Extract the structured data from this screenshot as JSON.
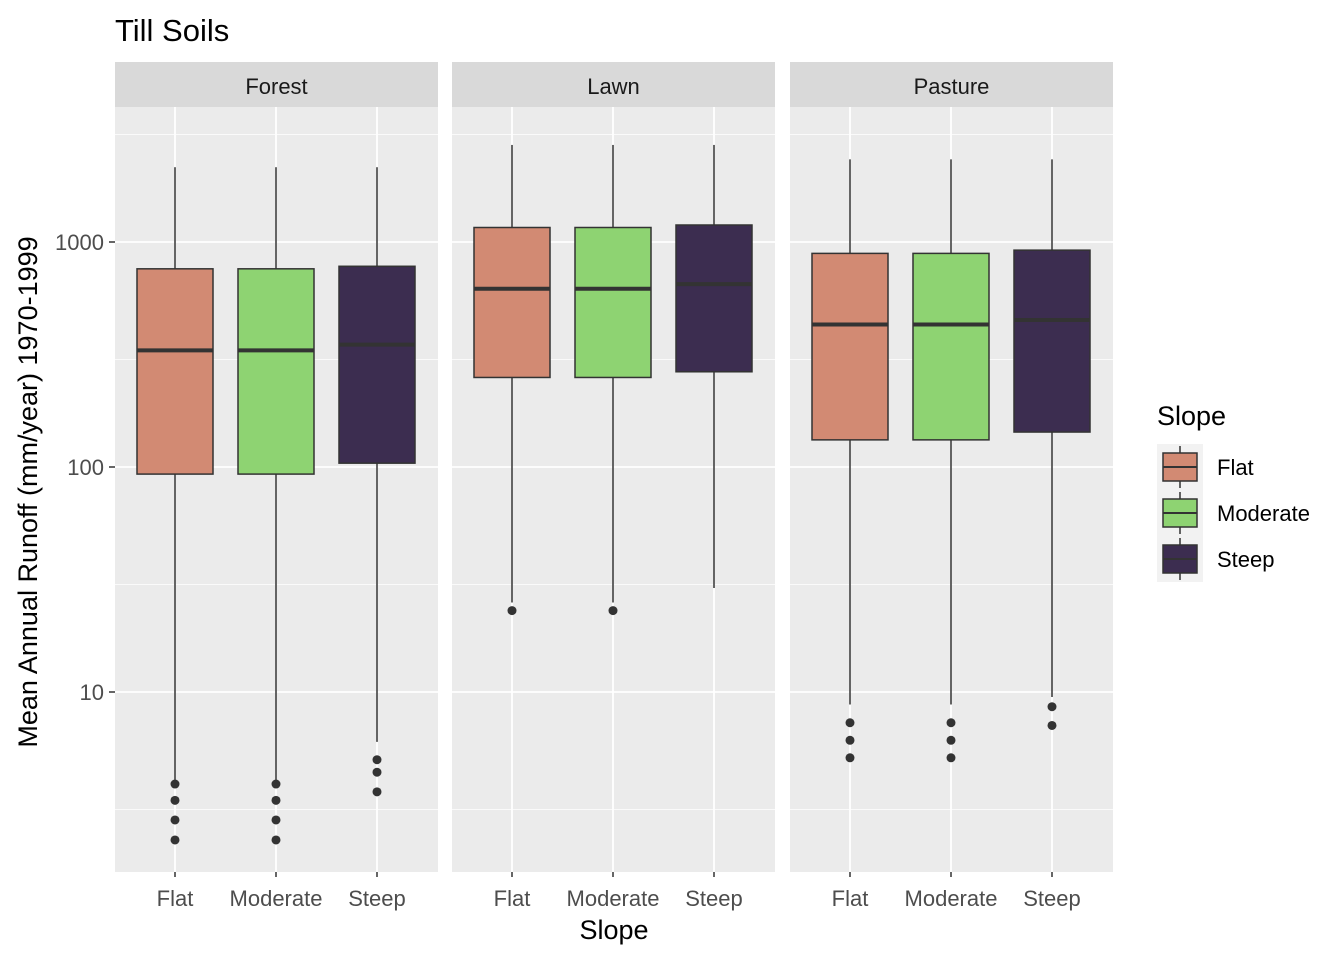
{
  "chart_data": {
    "type": "boxplot",
    "title": "Till Soils",
    "xlabel": "Slope",
    "ylabel": "Mean Annual Runoff (mm/year) 1970-1999",
    "y_scale": "log10",
    "yticks": [
      10,
      100,
      1000
    ],
    "ytick_labels": [
      "10",
      "100",
      "1000"
    ],
    "categories": [
      "Flat",
      "Moderate",
      "Steep"
    ],
    "colors": {
      "Flat": "#d28a73",
      "Moderate": "#8ed372",
      "Steep": "#3c2d50"
    },
    "legend": {
      "title": "Slope",
      "entries": [
        "Flat",
        "Moderate",
        "Steep"
      ],
      "position": "right"
    },
    "grid": true,
    "facets": [
      {
        "label": "Forest",
        "boxes": [
          {
            "category": "Flat",
            "whisker_low": 4,
            "q1": 93,
            "median": 330,
            "q3": 760,
            "whisker_high": 2150,
            "outliers": [
              3.9,
              3.3,
              2.7,
              2.2
            ]
          },
          {
            "category": "Moderate",
            "whisker_low": 4,
            "q1": 93,
            "median": 330,
            "q3": 760,
            "whisker_high": 2150,
            "outliers": [
              3.9,
              3.3,
              2.7,
              2.2
            ]
          },
          {
            "category": "Steep",
            "whisker_low": 6,
            "q1": 104,
            "median": 350,
            "q3": 780,
            "whisker_high": 2150,
            "outliers": [
              5,
              4.4,
              3.6
            ]
          }
        ]
      },
      {
        "label": "Lawn",
        "boxes": [
          {
            "category": "Flat",
            "whisker_low": 25,
            "q1": 250,
            "median": 620,
            "q3": 1160,
            "whisker_high": 2700,
            "outliers": [
              23
            ]
          },
          {
            "category": "Moderate",
            "whisker_low": 25,
            "q1": 250,
            "median": 620,
            "q3": 1160,
            "whisker_high": 2700,
            "outliers": [
              23
            ]
          },
          {
            "category": "Steep",
            "whisker_low": 29,
            "q1": 265,
            "median": 650,
            "q3": 1190,
            "whisker_high": 2700,
            "outliers": []
          }
        ]
      },
      {
        "label": "Pasture",
        "boxes": [
          {
            "category": "Flat",
            "whisker_low": 8.8,
            "q1": 132,
            "median": 430,
            "q3": 890,
            "whisker_high": 2330,
            "outliers": [
              7.3,
              6.1,
              5.1
            ]
          },
          {
            "category": "Moderate",
            "whisker_low": 8.8,
            "q1": 132,
            "median": 430,
            "q3": 890,
            "whisker_high": 2330,
            "outliers": [
              7.3,
              6.1,
              5.1
            ]
          },
          {
            "category": "Steep",
            "whisker_low": 9.5,
            "q1": 143,
            "median": 450,
            "q3": 920,
            "whisker_high": 2330,
            "outliers": [
              8.6,
              7.1
            ]
          }
        ]
      }
    ]
  }
}
